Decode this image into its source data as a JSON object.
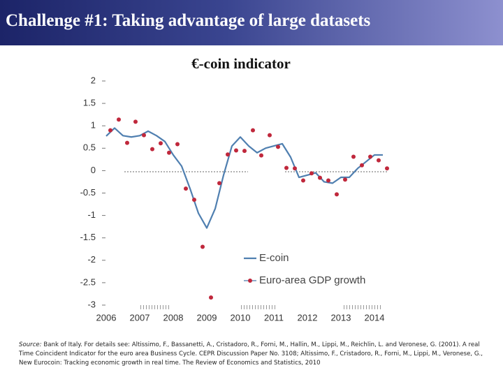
{
  "header": {
    "title": "Challenge #1: Taking advantage of large datasets"
  },
  "chart_data": {
    "type": "line",
    "title": "€-coin indicator",
    "xlim": [
      2006,
      2014.5
    ],
    "xticks": [
      2006,
      2007,
      2008,
      2009,
      2010,
      2011,
      2012,
      2013,
      2014
    ],
    "ylim": [
      -3,
      2
    ],
    "yticks": [
      2,
      1.5,
      1,
      0.5,
      0,
      -0.5,
      -1,
      -1.5,
      -2,
      -2.5,
      -3
    ],
    "series": [
      {
        "name": "E-coin",
        "color": "#4f7fb0",
        "style": "line",
        "x": [
          2006,
          2006.25,
          2006.5,
          2006.75,
          2007,
          2007.25,
          2007.5,
          2007.75,
          2008,
          2008.25,
          2008.5,
          2008.75,
          2009,
          2009.25,
          2009.5,
          2009.75,
          2010,
          2010.25,
          2010.5,
          2010.75,
          2011,
          2011.25,
          2011.5,
          2011.75,
          2012,
          2012.25,
          2012.5,
          2012.75,
          2013,
          2013.25,
          2013.5,
          2013.75,
          2014,
          2014.25
        ],
        "values": [
          0.77,
          0.95,
          0.78,
          0.75,
          0.78,
          0.88,
          0.78,
          0.65,
          0.35,
          0.1,
          -0.4,
          -0.95,
          -1.28,
          -0.85,
          -0.1,
          0.55,
          0.75,
          0.55,
          0.4,
          0.5,
          0.55,
          0.6,
          0.3,
          -0.15,
          -0.1,
          -0.05,
          -0.25,
          -0.28,
          -0.15,
          -0.15,
          0.05,
          0.2,
          0.35,
          0.35
        ]
      },
      {
        "name": "Euro-area GDP growth",
        "color": "#c0283c",
        "style": "dots",
        "x": [
          2006.125,
          2006.375,
          2006.625,
          2006.875,
          2007.125,
          2007.375,
          2007.625,
          2007.875,
          2008.125,
          2008.375,
          2008.625,
          2008.875,
          2009.125,
          2009.375,
          2009.625,
          2009.875,
          2010.125,
          2010.375,
          2010.625,
          2010.875,
          2011.125,
          2011.375,
          2011.625,
          2011.875,
          2012.125,
          2012.375,
          2012.625,
          2012.875,
          2013.125,
          2013.375,
          2013.625,
          2013.875,
          2014.125,
          2014.375
        ],
        "values": [
          0.9,
          1.14,
          0.62,
          1.09,
          0.79,
          0.48,
          0.61,
          0.4,
          0.59,
          -0.4,
          -0.65,
          -1.7,
          -2.83,
          -0.28,
          0.36,
          0.45,
          0.44,
          0.9,
          0.34,
          0.79,
          0.53,
          0.06,
          0.05,
          -0.22,
          -0.06,
          -0.16,
          -0.22,
          -0.53,
          -0.2,
          0.31,
          0.12,
          0.31,
          0.23,
          0.05
        ]
      }
    ]
  },
  "source": {
    "label": "Source:",
    "text": "Bank of Italy. For details see: Altissimo, F., Bassanetti, A., Cristadoro, R., Forni, M., Hallin, M., Lippi, M., Reichlin, L. and Veronese, G. (2001). A real Time Coincident Indicator for the euro area Business Cycle. CEPR Discussion Paper No. 3108; Altissimo, F., Cristadoro, R., Forni, M., Lippi, M., Veronese, G., New Eurocoin: Tracking economic growth in real time. The Review of Economics and Statistics, 2010"
  }
}
